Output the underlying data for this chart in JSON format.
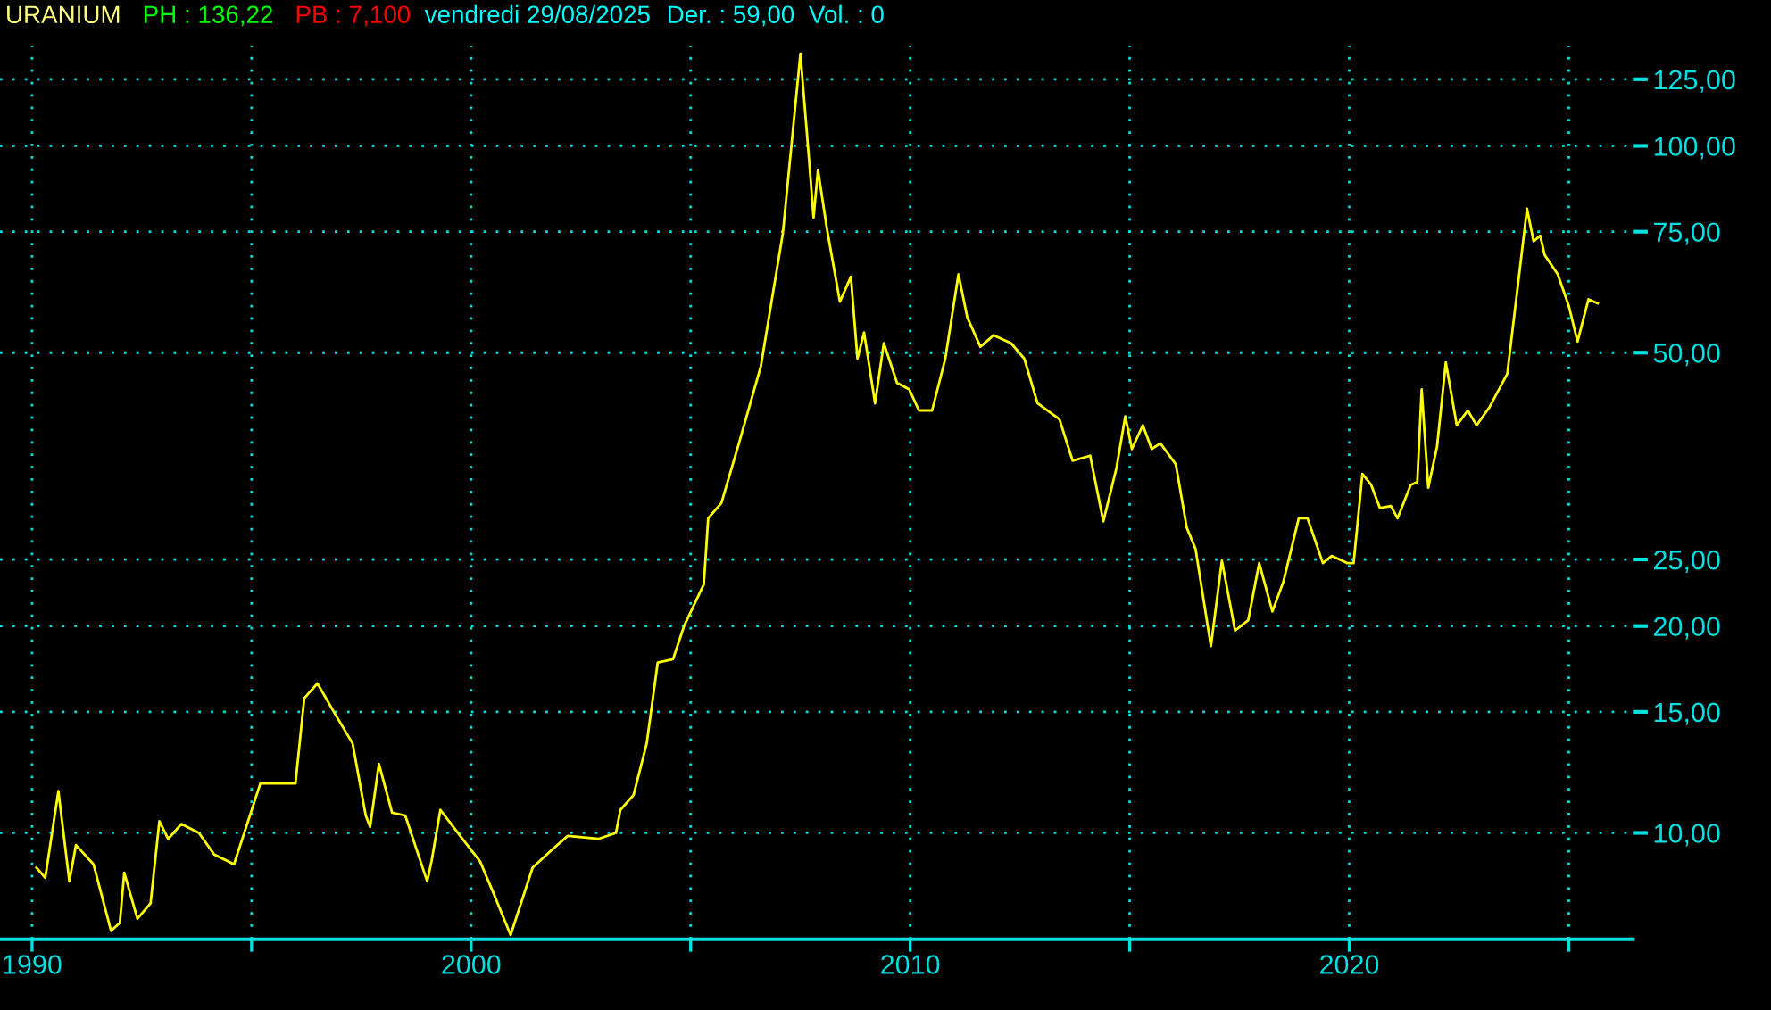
{
  "chart_data": {
    "type": "line",
    "title": "URANIUM",
    "annotations": [
      "PH : 136,22",
      "PB : 7,100",
      "vendredi 29/08/2025",
      "Der. : 59,00",
      "Vol. : 0"
    ],
    "x": [
      1990.1,
      1990.3,
      1990.6,
      1990.85,
      1991.0,
      1991.4,
      1991.8,
      1992.0,
      1992.1,
      1992.4,
      1992.7,
      1992.9,
      1993.1,
      1993.4,
      1993.8,
      1994.15,
      1994.6,
      1995.2,
      1995.5,
      1996.0,
      1996.2,
      1996.5,
      1996.9,
      1997.3,
      1997.6,
      1997.7,
      1997.9,
      1998.2,
      1998.5,
      1999.0,
      1999.1,
      1999.3,
      1999.75,
      2000.2,
      2000.5,
      2000.9,
      2001.4,
      2001.8,
      2002.2,
      2002.9,
      2003.3,
      2003.4,
      2003.7,
      2004.0,
      2004.25,
      2004.6,
      2004.85,
      2005.3,
      2005.4,
      2005.7,
      2006.1,
      2006.6,
      2007.1,
      2007.5,
      2007.7,
      2007.8,
      2007.9,
      2008.1,
      2008.4,
      2008.65,
      2008.8,
      2008.95,
      2009.2,
      2009.4,
      2009.7,
      2009.98,
      2010.2,
      2010.5,
      2010.8,
      2011.1,
      2011.3,
      2011.6,
      2011.9,
      2012.3,
      2012.6,
      2012.9,
      2013.4,
      2013.7,
      2014.1,
      2014.4,
      2014.7,
      2014.9,
      2015.05,
      2015.3,
      2015.5,
      2015.7,
      2016.05,
      2016.3,
      2016.5,
      2016.85,
      2017.1,
      2017.4,
      2017.7,
      2017.95,
      2018.25,
      2018.5,
      2018.85,
      2019.05,
      2019.4,
      2019.6,
      2019.95,
      2020.1,
      2020.3,
      2020.5,
      2020.7,
      2020.95,
      2021.1,
      2021.4,
      2021.55,
      2021.65,
      2021.8,
      2022.0,
      2022.2,
      2022.45,
      2022.7,
      2022.9,
      2023.2,
      2023.6,
      2024.05,
      2024.2,
      2024.35,
      2024.45,
      2024.75,
      2025.0,
      2025.2,
      2025.45,
      2025.66
    ],
    "series": [
      {
        "color": "#ffff00",
        "values": [
          8.9,
          8.6,
          11.5,
          8.5,
          9.6,
          9.0,
          7.2,
          7.4,
          8.75,
          7.5,
          7.9,
          10.4,
          9.8,
          10.3,
          10.0,
          9.3,
          9.0,
          11.8,
          11.8,
          11.8,
          15.7,
          16.5,
          14.9,
          13.5,
          10.6,
          10.2,
          12.6,
          10.7,
          10.6,
          8.5,
          9.1,
          10.8,
          9.9,
          9.1,
          8.2,
          7.1,
          8.9,
          9.4,
          9.9,
          9.8,
          10.0,
          10.8,
          11.35,
          13.5,
          17.7,
          17.9,
          20.0,
          23.0,
          28.7,
          30.2,
          36.9,
          47.8,
          74.6,
          136.22,
          95,
          78.6,
          92.3,
          76,
          59.3,
          64.5,
          49,
          53.5,
          42.2,
          51.6,
          45.2,
          44.2,
          41.2,
          41.2,
          49,
          65,
          56.3,
          51,
          53,
          51.6,
          49,
          42.2,
          40,
          34.8,
          35.4,
          28.4,
          34,
          40.4,
          36.2,
          39.2,
          36.2,
          36.9,
          34.4,
          27.8,
          25.9,
          18.7,
          24.9,
          19.7,
          20.4,
          24.7,
          21.0,
          23.2,
          28.7,
          28.7,
          24.7,
          25.3,
          24.7,
          24.7,
          33.3,
          32.1,
          29.7,
          29.9,
          28.7,
          32.1,
          32.4,
          44.2,
          31.8,
          36.5,
          48.4,
          39.2,
          41.2,
          39.2,
          41.7,
          46.6,
          81,
          72.6,
          74,
          69.4,
          65,
          58.5,
          51.9,
          59.8,
          59.0
        ]
      }
    ],
    "log": "y",
    "xlim": [
      1989.27,
      2026.46
    ],
    "xticks": [
      1990,
      {
        "value": 1995,
        "label": null
      },
      2000,
      {
        "value": 2005,
        "label": null
      },
      2010,
      {
        "value": 2015,
        "label": null
      },
      2020,
      {
        "value": 2025,
        "label": null
      }
    ],
    "ylim": [
      7.0,
      140
    ],
    "yticks": [
      {
        "value": 10,
        "label": "10,00"
      },
      {
        "value": 15,
        "label": "15,00"
      },
      {
        "value": 20,
        "label": "20,00"
      },
      {
        "value": 25,
        "label": "25,00"
      },
      {
        "value": 50,
        "label": "50,00"
      },
      {
        "value": 75,
        "label": "75,00"
      },
      {
        "value": 100,
        "label": "100,00"
      },
      {
        "value": 125,
        "label": "125,00"
      }
    ],
    "grid": true,
    "marker": "none",
    "line_style": "solid",
    "legend": false
  }
}
